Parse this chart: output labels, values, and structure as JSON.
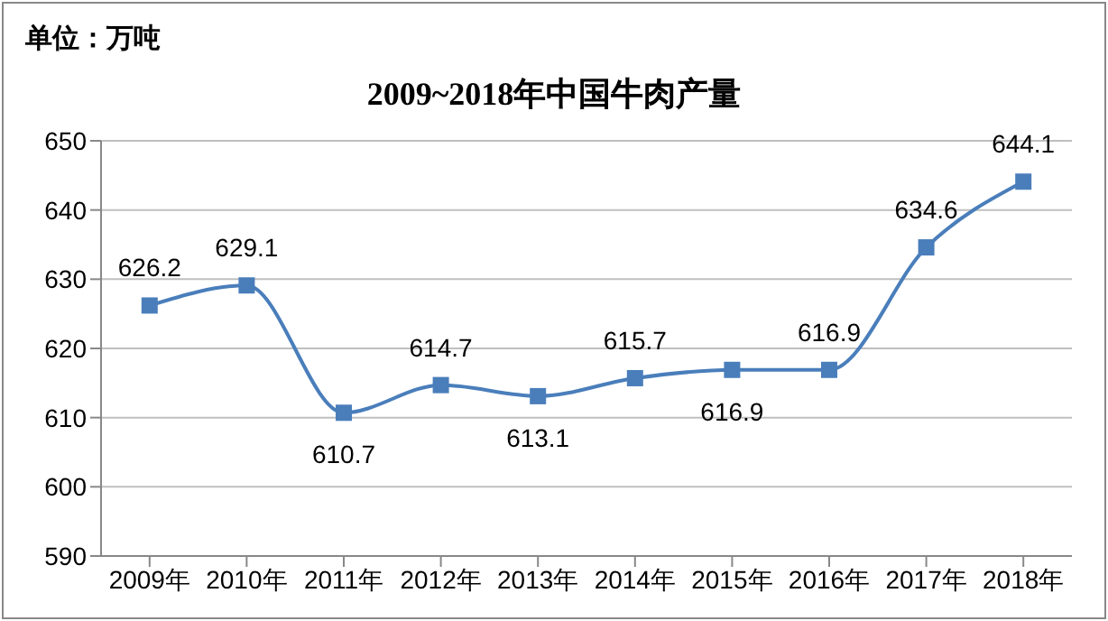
{
  "chart_data": {
    "type": "line",
    "title": "2009~2018年中国牛肉产量",
    "annotations": [
      "单位：万吨"
    ],
    "categories": [
      "2009年",
      "2010年",
      "2011年",
      "2012年",
      "2013年",
      "2014年",
      "2015年",
      "2016年",
      "2017年",
      "2018年"
    ],
    "series": [
      {
        "color": "#4a7ebb",
        "values": [
          626.2,
          629.1,
          610.7,
          614.7,
          613.1,
          615.7,
          616.9,
          616.9,
          634.6,
          644.1
        ]
      }
    ],
    "ylim": [
      590,
      650
    ],
    "yticks": [
      590,
      600,
      610,
      620,
      630,
      640,
      650
    ],
    "grid": "y",
    "marker": "square",
    "data_labels": true
  }
}
